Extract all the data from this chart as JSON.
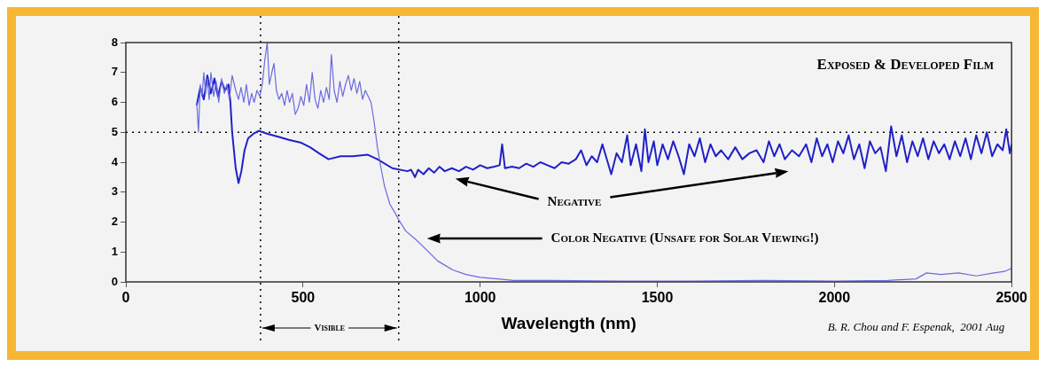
{
  "chart_data": {
    "type": "line",
    "title": "Exposed & Developed Film",
    "xlabel": "Wavelength (nm)",
    "xlim": [
      0,
      2500
    ],
    "xticks": [
      0,
      500,
      1000,
      1500,
      2000,
      2500
    ],
    "ylim": [
      0,
      8
    ],
    "yticks": [
      0,
      1,
      2,
      3,
      4,
      5,
      6,
      7,
      8
    ],
    "grid": false,
    "legend": false,
    "marker": "none",
    "ref_lines": [
      {
        "axis": "y",
        "value": 5,
        "line_style": "dotted"
      },
      {
        "axis": "x",
        "value": 380,
        "line_style": "dotted"
      },
      {
        "axis": "x",
        "value": 770,
        "line_style": "dotted"
      }
    ],
    "annotations": [
      "Visible",
      "B. R. Chou and F. Espenak,  2001 Aug"
    ],
    "series": [
      {
        "name": "Color Negative (Unsafe for Solar Viewing!)",
        "color": "#6a6ae0",
        "x": [
          200,
          205,
          210,
          215,
          220,
          225,
          230,
          235,
          240,
          248,
          255,
          262,
          270,
          278,
          285,
          292,
          300,
          310,
          318,
          325,
          333,
          340,
          348,
          355,
          362,
          370,
          378,
          385,
          392,
          399,
          405,
          412,
          418,
          425,
          432,
          440,
          448,
          455,
          462,
          470,
          478,
          486,
          494,
          502,
          510,
          518,
          526,
          534,
          542,
          550,
          558,
          566,
          574,
          580,
          588,
          596,
          604,
          612,
          620,
          628,
          636,
          644,
          652,
          660,
          668,
          676,
          684,
          692,
          700,
          710,
          717,
          730,
          745,
          760,
          769,
          790,
          820,
          846,
          880,
          923,
          960,
          1000,
          1050,
          1094,
          1200,
          1400,
          1600,
          1800,
          2000,
          2150,
          2230,
          2260,
          2300,
          2350,
          2400,
          2450,
          2480,
          2500
        ],
        "values": [
          6.0,
          5.0,
          6.6,
          6.2,
          7.0,
          6.3,
          6.8,
          6.1,
          7.0,
          6.2,
          6.7,
          6.0,
          6.8,
          6.3,
          6.6,
          6.1,
          6.9,
          6.4,
          6.1,
          6.5,
          6.0,
          6.6,
          5.9,
          6.3,
          6.0,
          6.4,
          6.2,
          6.6,
          7.4,
          8.0,
          6.6,
          7.0,
          7.3,
          6.4,
          6.1,
          6.3,
          5.9,
          6.4,
          6.0,
          6.3,
          5.6,
          5.8,
          6.2,
          5.9,
          6.6,
          6.0,
          7.0,
          6.1,
          5.8,
          6.4,
          6.0,
          6.5,
          6.1,
          7.6,
          6.4,
          6.0,
          6.7,
          6.2,
          6.6,
          6.9,
          6.4,
          6.8,
          6.3,
          6.7,
          6.1,
          6.4,
          6.2,
          6.0,
          5.4,
          4.5,
          4.0,
          3.2,
          2.6,
          2.3,
          2.1,
          1.7,
          1.4,
          1.1,
          0.7,
          0.4,
          0.25,
          0.15,
          0.1,
          0.05,
          0.05,
          0.03,
          0.03,
          0.05,
          0.03,
          0.05,
          0.1,
          0.3,
          0.25,
          0.3,
          0.2,
          0.3,
          0.35,
          0.45
        ]
      },
      {
        "name": "Negative",
        "color": "#2020c8",
        "x": [
          200,
          210,
          220,
          230,
          240,
          250,
          260,
          270,
          280,
          290,
          295,
          300,
          310,
          318,
          326,
          335,
          345,
          360,
          375,
          400,
          430,
          460,
          495,
          520,
          545,
          572,
          606,
          640,
          683,
          710,
          752,
          795,
          805,
          816,
          825,
          840,
          855,
          870,
          885,
          900,
          920,
          940,
          960,
          980,
          1000,
          1020,
          1040,
          1055,
          1062,
          1070,
          1090,
          1110,
          1130,
          1150,
          1170,
          1190,
          1210,
          1230,
          1250,
          1270,
          1285,
          1300,
          1315,
          1330,
          1345,
          1360,
          1370,
          1385,
          1400,
          1415,
          1425,
          1440,
          1455,
          1465,
          1475,
          1490,
          1500,
          1515,
          1530,
          1545,
          1560,
          1575,
          1590,
          1605,
          1620,
          1635,
          1650,
          1665,
          1680,
          1700,
          1720,
          1740,
          1760,
          1780,
          1800,
          1815,
          1830,
          1845,
          1860,
          1880,
          1900,
          1920,
          1935,
          1950,
          1965,
          1980,
          1995,
          2010,
          2025,
          2040,
          2055,
          2070,
          2085,
          2100,
          2115,
          2130,
          2145,
          2160,
          2175,
          2190,
          2205,
          2220,
          2235,
          2250,
          2265,
          2280,
          2295,
          2310,
          2325,
          2340,
          2355,
          2370,
          2385,
          2400,
          2415,
          2430,
          2445,
          2460,
          2475,
          2485,
          2495,
          2500
        ],
        "values": [
          5.9,
          6.5,
          6.1,
          6.9,
          6.3,
          6.8,
          6.2,
          6.7,
          6.4,
          6.6,
          6.0,
          5.0,
          3.8,
          3.3,
          3.7,
          4.4,
          4.8,
          4.95,
          5.05,
          4.95,
          4.85,
          4.75,
          4.65,
          4.5,
          4.3,
          4.1,
          4.2,
          4.2,
          4.25,
          4.1,
          3.8,
          3.7,
          3.75,
          3.5,
          3.75,
          3.6,
          3.8,
          3.65,
          3.85,
          3.7,
          3.8,
          3.7,
          3.85,
          3.75,
          3.9,
          3.8,
          3.85,
          3.9,
          4.6,
          3.8,
          3.85,
          3.8,
          3.95,
          3.85,
          4.0,
          3.9,
          3.8,
          4.0,
          3.95,
          4.1,
          4.4,
          3.9,
          4.2,
          4.0,
          4.6,
          4.0,
          3.6,
          4.3,
          4.0,
          4.9,
          3.9,
          4.6,
          3.7,
          5.1,
          4.0,
          4.7,
          3.9,
          4.6,
          4.1,
          4.7,
          4.2,
          3.6,
          4.6,
          4.2,
          4.8,
          4.0,
          4.6,
          4.2,
          4.4,
          4.1,
          4.5,
          4.1,
          4.3,
          4.4,
          4.0,
          4.7,
          4.2,
          4.6,
          4.1,
          4.4,
          4.2,
          4.6,
          4.0,
          4.8,
          4.2,
          4.6,
          4.0,
          4.7,
          4.3,
          4.9,
          4.1,
          4.6,
          3.8,
          4.7,
          4.3,
          4.5,
          3.7,
          5.2,
          4.2,
          4.9,
          4.0,
          4.7,
          4.2,
          4.8,
          4.1,
          4.7,
          4.3,
          4.6,
          4.1,
          4.7,
          4.2,
          4.8,
          4.1,
          4.9,
          4.3,
          5.0,
          4.2,
          4.6,
          4.4,
          5.1,
          4.3,
          4.6
        ]
      }
    ]
  }
}
